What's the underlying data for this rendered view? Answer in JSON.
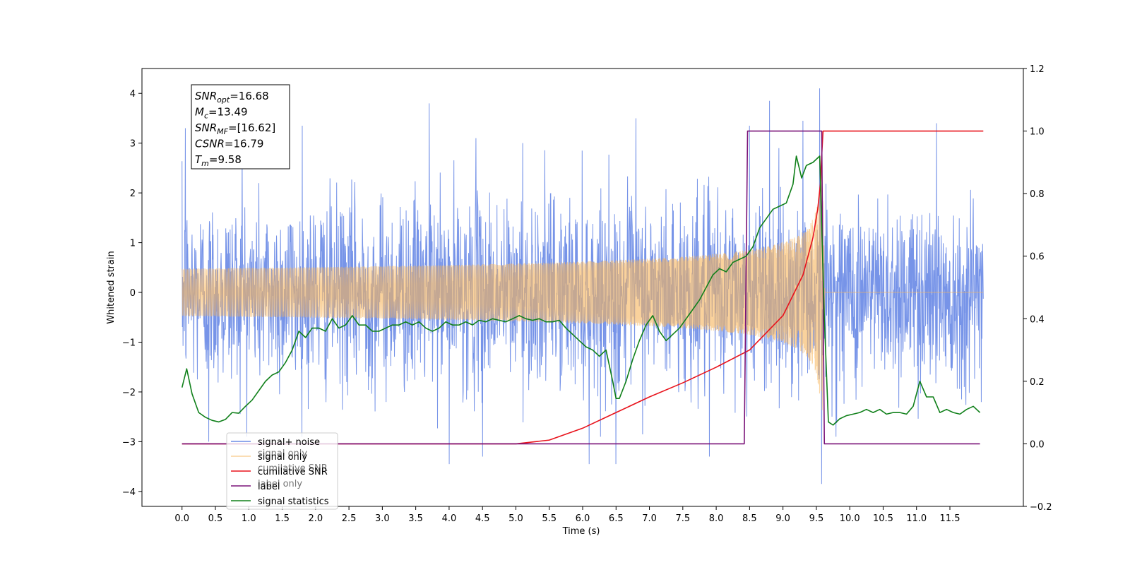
{
  "chart_data": {
    "type": "line",
    "xlabel": "Time (s)",
    "ylabel": "Whitened strain",
    "xlim": [
      -0.6,
      12.6
    ],
    "ylim": [
      -4.3,
      4.5
    ],
    "y2lim": [
      -0.2,
      1.2
    ],
    "x_ticks": [
      "0.0",
      "0.5",
      "1.0",
      "1.5",
      "2.0",
      "2.5",
      "3.0",
      "3.5",
      "4.0",
      "4.5",
      "5.0",
      "5.5",
      "6.0",
      "6.5",
      "7.0",
      "7.5",
      "8.0",
      "8.5",
      "9.0",
      "9.5",
      "10.0",
      "10.5",
      "11.0",
      "11.5"
    ],
    "y_ticks": [
      "−4",
      "−3",
      "−2",
      "−1",
      "0",
      "1",
      "2",
      "3",
      "4"
    ],
    "y2_ticks": [
      "−0.2",
      "0.0",
      "0.2",
      "0.4",
      "0.6",
      "0.8",
      "1.0",
      "1.2"
    ],
    "annotation": [
      {
        "main": "SNR",
        "sub": "opt",
        "rest": "=16.68"
      },
      {
        "main": "M",
        "sub": "c",
        "rest": "=13.49"
      },
      {
        "main": "SNR",
        "sub": "MF",
        "rest": "=[16.62]"
      },
      {
        "main": "CSNR",
        "sub": "",
        "rest": "=16.79"
      },
      {
        "main": "T",
        "sub": "m",
        "rest": "=9.58"
      }
    ],
    "legend_position": "lower-left",
    "series": [
      {
        "name": "signal+ noise",
        "color": "#6b8be6",
        "axis": "left",
        "kind": "noise",
        "time_range": [
          0.0,
          12.0
        ],
        "std": 0.95,
        "spikes": [
          [
            0.05,
            3.3
          ],
          [
            0.4,
            -3.0
          ],
          [
            0.9,
            2.9
          ],
          [
            1.8,
            3.35
          ],
          [
            3.7,
            3.8
          ],
          [
            4.0,
            -3.45
          ],
          [
            4.4,
            3.1
          ],
          [
            4.5,
            -3.3
          ],
          [
            5.1,
            3.0
          ],
          [
            6.1,
            -3.45
          ],
          [
            6.5,
            -3.45
          ],
          [
            6.8,
            3.5
          ],
          [
            7.9,
            -3.3
          ],
          [
            8.5,
            3.35
          ],
          [
            8.8,
            3.85
          ],
          [
            9.3,
            3.45
          ],
          [
            9.55,
            4.1
          ],
          [
            9.58,
            -3.85
          ],
          [
            11.3,
            3.4
          ]
        ]
      },
      {
        "name": "signal only",
        "color": "#f6b45a",
        "axis": "left",
        "kind": "chirp",
        "time_range": [
          0.0,
          12.0
        ],
        "merger": 9.58,
        "amplitude_at_merger": 2.9
      },
      {
        "name": "cumilative SNR",
        "color": "#e8121b",
        "axis": "right",
        "x": [
          0.0,
          5.0,
          5.5,
          6.0,
          6.5,
          7.0,
          7.5,
          8.0,
          8.5,
          9.0,
          9.3,
          9.45,
          9.52,
          9.56,
          9.58,
          9.6,
          12.0
        ],
        "y": [
          0.0,
          0.0,
          0.012,
          0.05,
          0.1,
          0.15,
          0.195,
          0.245,
          0.3,
          0.41,
          0.54,
          0.66,
          0.75,
          0.83,
          0.92,
          1.0,
          1.0
        ]
      },
      {
        "name": "label",
        "color": "#7a1278",
        "axis": "right",
        "x": [
          0.0,
          8.42,
          8.47,
          9.58,
          9.62,
          11.95
        ],
        "y": [
          0.0,
          0.0,
          1.0,
          1.0,
          0.0,
          0.0
        ]
      },
      {
        "name": "signal statistics",
        "color": "#10801a",
        "axis": "right",
        "x": [
          0.0,
          0.07,
          0.15,
          0.25,
          0.35,
          0.45,
          0.55,
          0.65,
          0.75,
          0.85,
          0.95,
          1.05,
          1.15,
          1.25,
          1.35,
          1.45,
          1.55,
          1.65,
          1.75,
          1.85,
          1.95,
          2.05,
          2.15,
          2.25,
          2.35,
          2.45,
          2.55,
          2.65,
          2.75,
          2.85,
          2.95,
          3.05,
          3.15,
          3.25,
          3.35,
          3.45,
          3.55,
          3.65,
          3.75,
          3.85,
          3.95,
          4.05,
          4.15,
          4.25,
          4.35,
          4.45,
          4.55,
          4.65,
          4.75,
          4.85,
          4.95,
          5.05,
          5.15,
          5.25,
          5.35,
          5.45,
          5.55,
          5.65,
          5.75,
          5.85,
          5.95,
          6.05,
          6.15,
          6.25,
          6.35,
          6.45,
          6.5,
          6.55,
          6.65,
          6.75,
          6.85,
          6.95,
          7.05,
          7.15,
          7.25,
          7.35,
          7.45,
          7.55,
          7.65,
          7.75,
          7.85,
          7.95,
          8.05,
          8.15,
          8.25,
          8.35,
          8.45,
          8.55,
          8.65,
          8.75,
          8.85,
          8.95,
          9.05,
          9.15,
          9.2,
          9.28,
          9.35,
          9.45,
          9.55,
          9.62,
          9.68,
          9.75,
          9.85,
          9.95,
          10.05,
          10.15,
          10.25,
          10.35,
          10.45,
          10.55,
          10.65,
          10.75,
          10.85,
          10.95,
          11.05,
          11.15,
          11.25,
          11.35,
          11.45,
          11.55,
          11.65,
          11.75,
          11.85,
          11.95
        ],
        "y": [
          0.18,
          0.24,
          0.16,
          0.1,
          0.085,
          0.075,
          0.07,
          0.078,
          0.1,
          0.098,
          0.12,
          0.14,
          0.17,
          0.2,
          0.22,
          0.23,
          0.26,
          0.3,
          0.36,
          0.34,
          0.37,
          0.37,
          0.36,
          0.4,
          0.37,
          0.38,
          0.41,
          0.38,
          0.38,
          0.36,
          0.36,
          0.37,
          0.38,
          0.38,
          0.39,
          0.38,
          0.39,
          0.37,
          0.36,
          0.37,
          0.39,
          0.38,
          0.38,
          0.39,
          0.38,
          0.395,
          0.39,
          0.4,
          0.395,
          0.39,
          0.4,
          0.41,
          0.4,
          0.395,
          0.4,
          0.39,
          0.39,
          0.395,
          0.37,
          0.35,
          0.33,
          0.31,
          0.3,
          0.28,
          0.3,
          0.2,
          0.145,
          0.145,
          0.2,
          0.27,
          0.33,
          0.38,
          0.41,
          0.36,
          0.33,
          0.35,
          0.37,
          0.4,
          0.43,
          0.46,
          0.5,
          0.54,
          0.56,
          0.55,
          0.58,
          0.59,
          0.6,
          0.63,
          0.69,
          0.72,
          0.75,
          0.76,
          0.77,
          0.83,
          0.92,
          0.85,
          0.89,
          0.9,
          0.92,
          0.4,
          0.07,
          0.06,
          0.08,
          0.09,
          0.095,
          0.1,
          0.11,
          0.1,
          0.11,
          0.095,
          0.1,
          0.1,
          0.095,
          0.12,
          0.2,
          0.15,
          0.15,
          0.1,
          0.11,
          0.1,
          0.095,
          0.11,
          0.12,
          0.1
        ]
      }
    ],
    "legend_entries": [
      "signal+ noise",
      "signal only",
      "cumilative SNR",
      "label",
      "signal statistics"
    ],
    "legend_ghost_text": [
      "label only",
      "signal only",
      "cumilative SNR"
    ]
  }
}
